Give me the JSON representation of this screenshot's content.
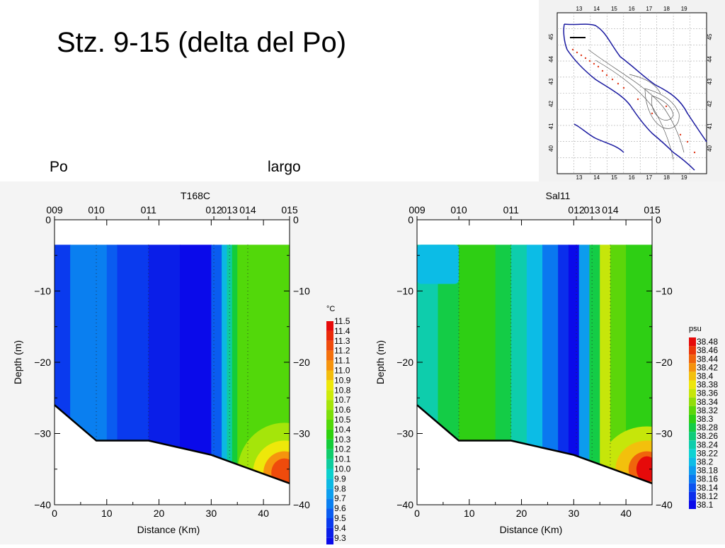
{
  "slide": {
    "title": "Stz. 9-15 (delta del Po)",
    "label_left": "Po",
    "label_right": "largo"
  },
  "map": {
    "lon_ticks": [
      "13",
      "14",
      "15",
      "16",
      "17",
      "18",
      "19"
    ],
    "lat_ticks": [
      "45",
      "44",
      "43",
      "42",
      "41",
      "40"
    ],
    "colors": {
      "coast": "#1a1aa0",
      "bathymetry": "#555555",
      "stations": "#e03c1e",
      "section": "#000000"
    }
  },
  "chart_data": [
    {
      "type": "heatmap",
      "title": "T168C",
      "xlabel": "Distance (Km)",
      "ylabel": "Depth (m)",
      "xlim": [
        0,
        45
      ],
      "ylim": [
        -40,
        0
      ],
      "x_ticks": [
        "0",
        "10",
        "20",
        "30",
        "40"
      ],
      "y_ticks": [
        "0",
        "−10",
        "−20",
        "−30",
        "−40"
      ],
      "stations": [
        {
          "name": "009",
          "km": 0
        },
        {
          "name": "010",
          "km": 8
        },
        {
          "name": "011",
          "km": 18
        },
        {
          "name": "012",
          "km": 30.5
        },
        {
          "name": "013",
          "km": 33.5
        },
        {
          "name": "014",
          "km": 37
        },
        {
          "name": "015",
          "km": 45
        }
      ],
      "bottom_profile": [
        [
          0,
          -26
        ],
        [
          8,
          -31
        ],
        [
          18,
          -31
        ],
        [
          30,
          -33
        ],
        [
          45,
          -37
        ]
      ],
      "top_depth": -3.5,
      "field_columns": [
        {
          "x": [
            0,
            3
          ],
          "value": 9.5
        },
        {
          "x": [
            3,
            10
          ],
          "value": 9.7
        },
        {
          "x": [
            10,
            12
          ],
          "value": 9.6
        },
        {
          "x": [
            12,
            18
          ],
          "value": 9.5
        },
        {
          "x": [
            18,
            24
          ],
          "value": 9.4
        },
        {
          "x": [
            24,
            30
          ],
          "value": 9.35
        },
        {
          "x": [
            30,
            32
          ],
          "value": 9.6
        },
        {
          "x": [
            32,
            33
          ],
          "value": 9.9
        },
        {
          "x": [
            33,
            34
          ],
          "value": 10.1
        },
        {
          "x": [
            34,
            35
          ],
          "value": 10.3
        },
        {
          "x": [
            35,
            45
          ],
          "value": 10.5
        }
      ],
      "bottom_anomaly": {
        "center": [
          44,
          -35.5
        ],
        "levels": [
          {
            "value": 10.7,
            "rx": 9,
            "ry": 7
          },
          {
            "value": 10.9,
            "rx": 6,
            "ry": 4.5
          },
          {
            "value": 11.1,
            "rx": 4,
            "ry": 3
          },
          {
            "value": 11.3,
            "rx": 2.5,
            "ry": 2
          }
        ]
      },
      "colorbar": {
        "unit": "°C",
        "labels": [
          "11.5",
          "11.4",
          "11.3",
          "11.2",
          "11.1",
          "11.0",
          "10.9",
          "10.8",
          "10.7",
          "10.6",
          "10.5",
          "10.4",
          "10.3",
          "10.2",
          "10.1",
          "10.0",
          "9.9",
          "9.8",
          "9.7",
          "9.6",
          "9.5",
          "9.4",
          "9.3"
        ],
        "colors": [
          "#e60a0a",
          "#ea2a0a",
          "#ef4b0c",
          "#f4700c",
          "#f6940e",
          "#f3bd0c",
          "#eee80a",
          "#cdeb0a",
          "#a5e50a",
          "#7cdf0a",
          "#52d80a",
          "#2ed10e",
          "#14cc3a",
          "#10cc6c",
          "#0ecc9e",
          "#0cd0cd",
          "#0cb8e2",
          "#0c9eee",
          "#0a7ff0",
          "#0a5cf0",
          "#0a3aee",
          "#0a1ee8",
          "#0a0aea"
        ]
      }
    },
    {
      "type": "heatmap",
      "title": "Sal11",
      "xlabel": "Distance (Km)",
      "ylabel": "Depth (m)",
      "xlim": [
        0,
        45
      ],
      "ylim": [
        -40,
        0
      ],
      "x_ticks": [
        "0",
        "10",
        "20",
        "30",
        "40"
      ],
      "y_ticks": [
        "0",
        "−10",
        "−20",
        "−30",
        "−40"
      ],
      "stations": [
        {
          "name": "009",
          "km": 0
        },
        {
          "name": "010",
          "km": 8
        },
        {
          "name": "011",
          "km": 18
        },
        {
          "name": "012",
          "km": 30.5
        },
        {
          "name": "013",
          "km": 33.5
        },
        {
          "name": "014",
          "km": 37
        },
        {
          "name": "015",
          "km": 45
        }
      ],
      "bottom_profile": [
        [
          0,
          -26
        ],
        [
          8,
          -31
        ],
        [
          18,
          -31
        ],
        [
          30,
          -33
        ],
        [
          45,
          -37
        ]
      ],
      "top_depth": -3.5,
      "field_columns": [
        {
          "x": [
            0,
            4
          ],
          "value": 38.24
        },
        {
          "x": [
            4,
            8
          ],
          "value": 38.28
        },
        {
          "x": [
            8,
            15
          ],
          "value": 38.3
        },
        {
          "x": [
            15,
            18
          ],
          "value": 38.28
        },
        {
          "x": [
            18,
            21
          ],
          "value": 38.24
        },
        {
          "x": [
            21,
            24
          ],
          "value": 38.2
        },
        {
          "x": [
            24,
            27
          ],
          "value": 38.16
        },
        {
          "x": [
            27,
            29
          ],
          "value": 38.12
        },
        {
          "x": [
            29,
            31
          ],
          "value": 38.1
        },
        {
          "x": [
            31,
            33
          ],
          "value": 38.18
        },
        {
          "x": [
            33,
            35
          ],
          "value": 38.28
        },
        {
          "x": [
            35,
            37
          ],
          "value": 38.36
        },
        {
          "x": [
            37,
            40
          ],
          "value": 38.32
        },
        {
          "x": [
            40,
            45
          ],
          "value": 38.3
        }
      ],
      "surface_anomaly": {
        "x": [
          0,
          8
        ],
        "depth": [
          -3.5,
          -9
        ],
        "value": 38.2
      },
      "bottom_anomaly": {
        "center": [
          44,
          -35
        ],
        "levels": [
          {
            "value": 38.36,
            "rx": 9,
            "ry": 6
          },
          {
            "value": 38.4,
            "rx": 6,
            "ry": 4
          },
          {
            "value": 38.44,
            "rx": 3.5,
            "ry": 2.5
          },
          {
            "value": 38.48,
            "rx": 2,
            "ry": 1.8
          }
        ]
      },
      "colorbar": {
        "unit": "psu",
        "labels": [
          "38.48",
          "38.46",
          "38.44",
          "38.42",
          "38.4",
          "38.38",
          "38.36",
          "38.34",
          "38.32",
          "38.3",
          "38.28",
          "38.26",
          "38.24",
          "38.22",
          "38.2",
          "38.18",
          "38.16",
          "38.14",
          "38.12",
          "38.1"
        ],
        "colors": [
          "#e60a0a",
          "#eb360a",
          "#f0640c",
          "#f4920e",
          "#f3c00c",
          "#eee60a",
          "#c6e60a",
          "#92dd0a",
          "#5cd60a",
          "#2ecf14",
          "#14cc46",
          "#10cc7a",
          "#0ecdac",
          "#0cd2d2",
          "#0cbce6",
          "#0c9cee",
          "#0a78f0",
          "#0a52f0",
          "#0a2eec",
          "#0a0aea"
        ]
      }
    }
  ]
}
